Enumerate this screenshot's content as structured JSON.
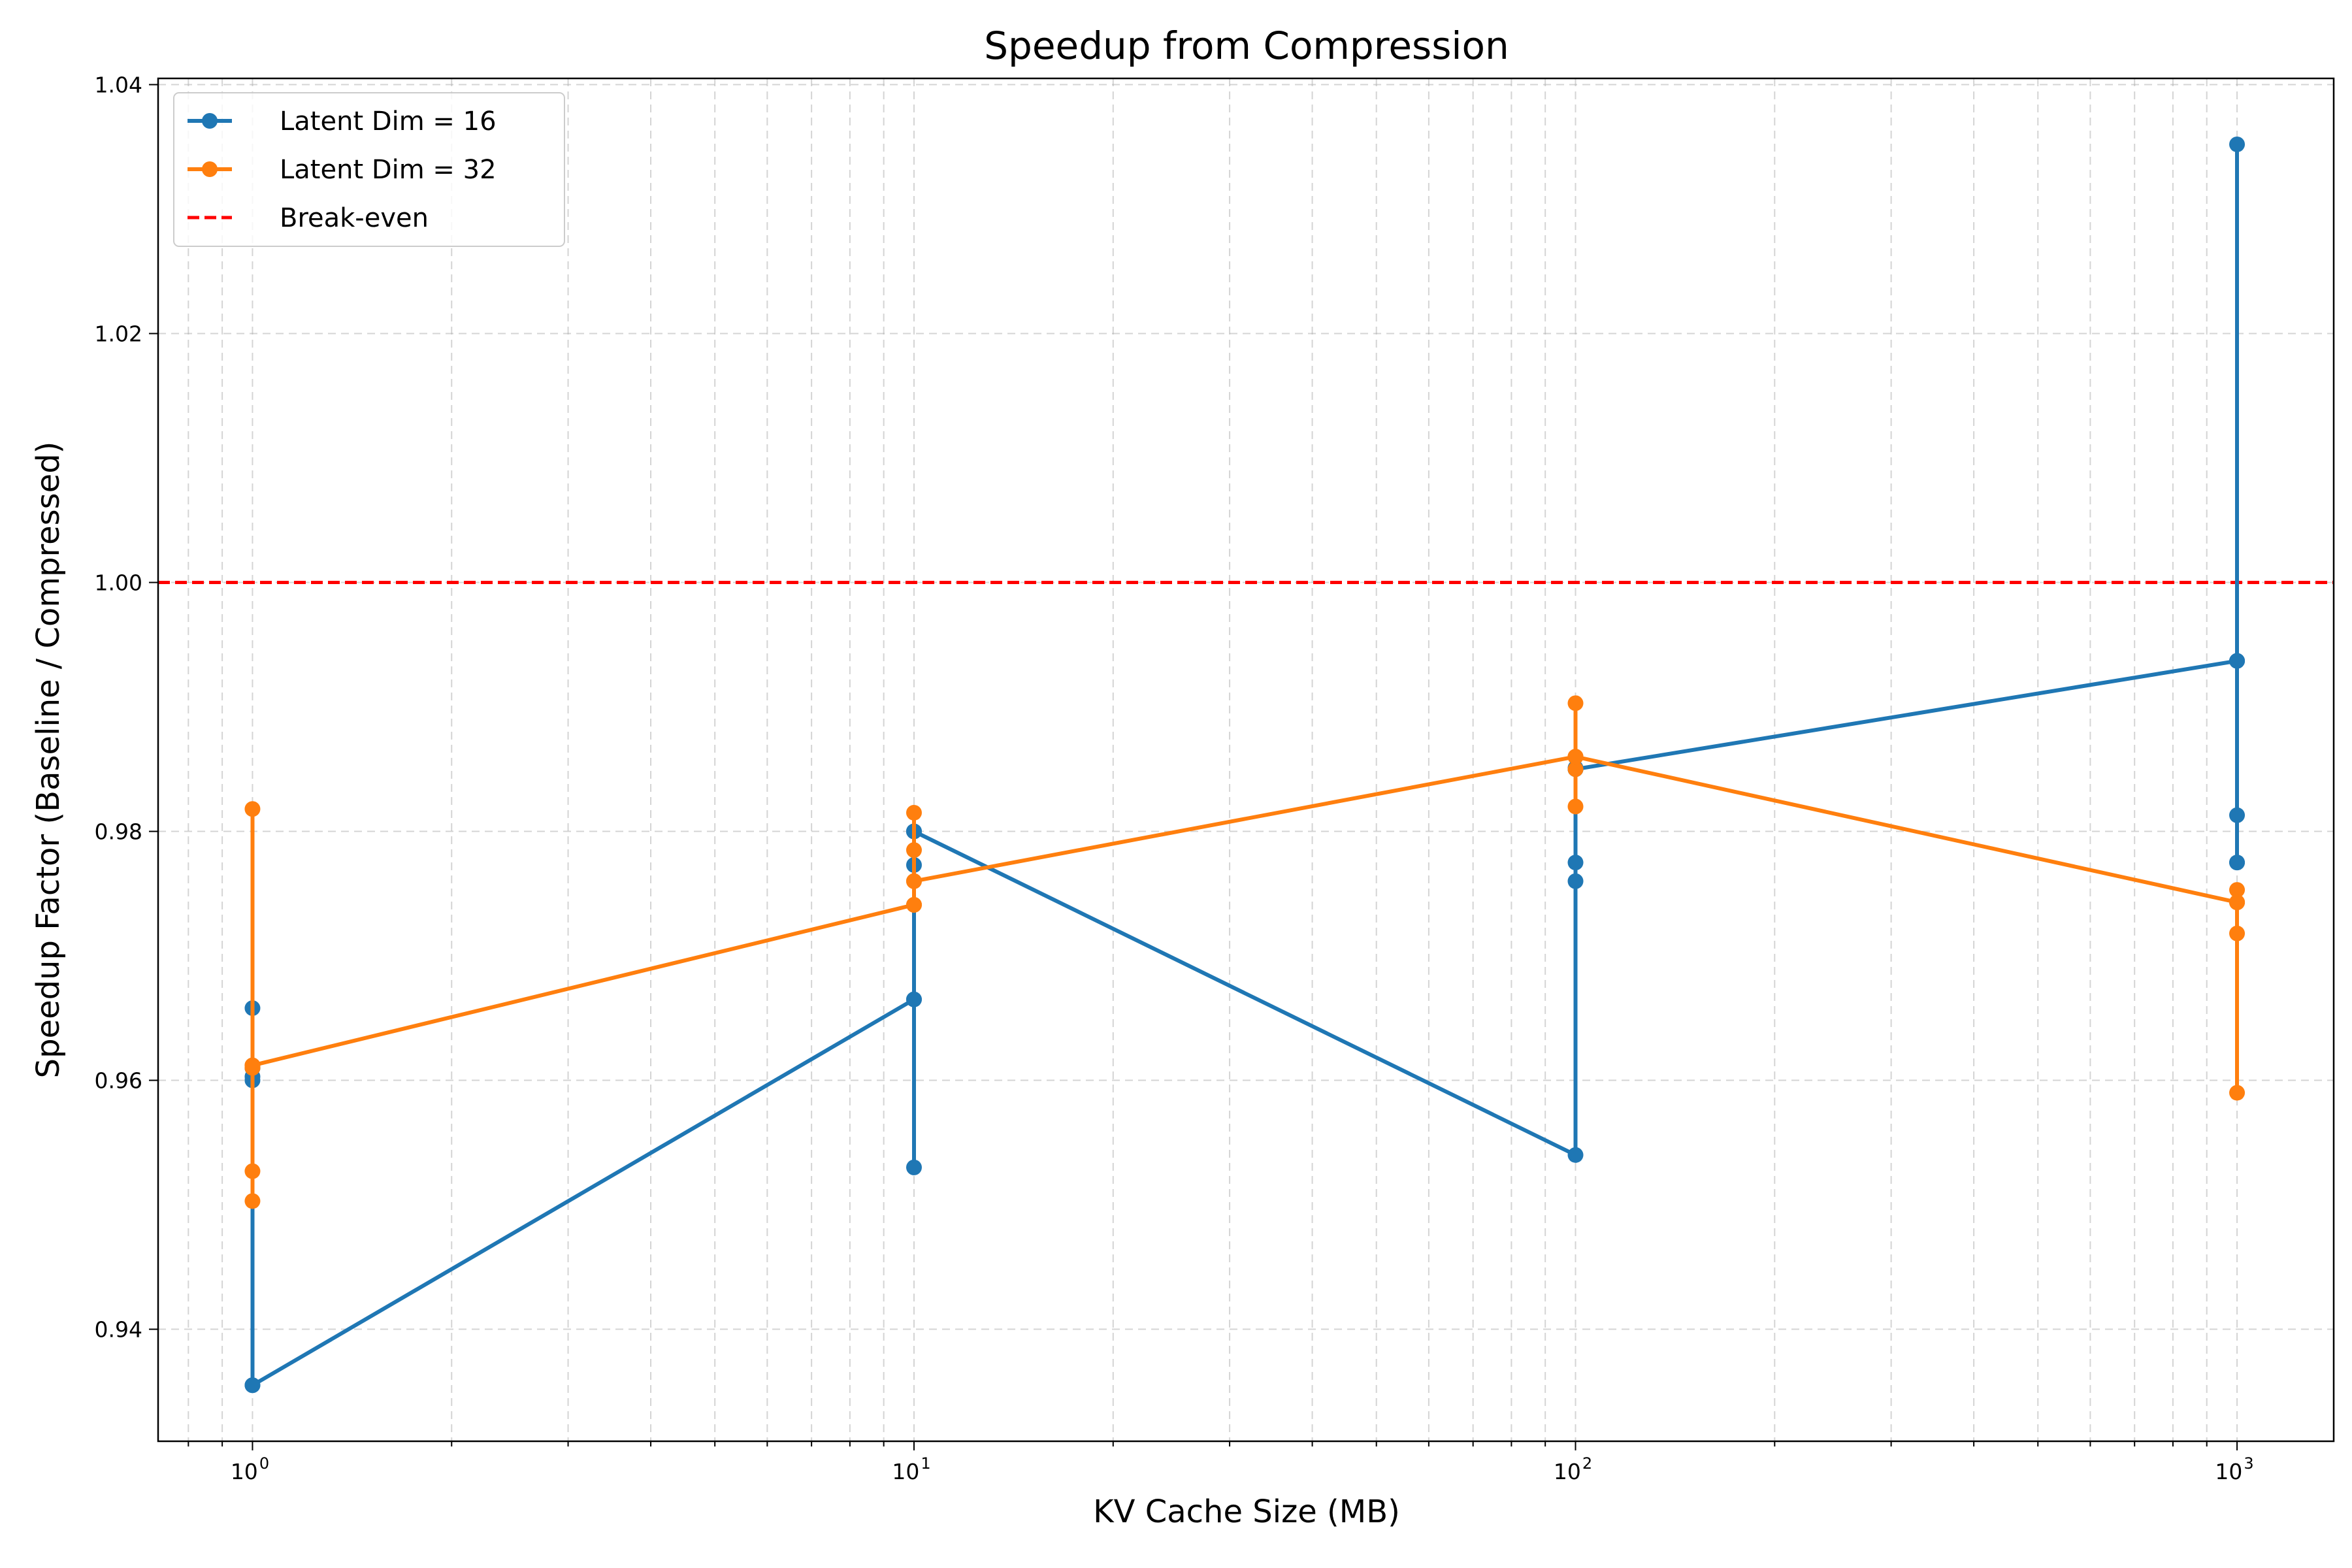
{
  "chart_data": {
    "type": "line",
    "title": "Speedup from Compression",
    "xlabel": "KV Cache Size (MB)",
    "ylabel": "Speedup Factor (Baseline / Compressed)",
    "xscale": "log",
    "xlim": [
      0.72,
      1400
    ],
    "ylim": [
      0.931,
      1.0405
    ],
    "grid": true,
    "legend_position": "top-left",
    "x_ticks": [
      {
        "base": "10",
        "exp": "0",
        "value": 1
      },
      {
        "base": "10",
        "exp": "1",
        "value": 10
      },
      {
        "base": "10",
        "exp": "2",
        "value": 100
      },
      {
        "base": "10",
        "exp": "3",
        "value": 1000
      }
    ],
    "y_ticks": [
      "0.94",
      "0.96",
      "0.98",
      "1.00",
      "1.02",
      "1.04"
    ],
    "series": [
      {
        "name": "Latent Dim = 16",
        "color": "#1f77b4",
        "x": [
          1,
          1,
          1,
          1,
          1,
          1,
          1,
          10,
          10,
          10,
          10,
          10,
          10,
          10,
          100,
          100,
          100,
          100,
          100,
          100,
          100,
          1000,
          1000,
          1000,
          1000,
          1000,
          1000,
          1000
        ],
        "y": [
          0.9355,
          0.96,
          0.961,
          0.9658,
          0.961,
          0.9603,
          0.9355,
          0.9665,
          0.953,
          0.98,
          0.9773,
          0.98,
          0.9665,
          0.98,
          0.954,
          0.976,
          0.9775,
          0.985,
          0.985,
          0.9851,
          0.985,
          0.9937,
          1.0352,
          0.9775,
          0.9813,
          0.9775,
          0.9937,
          0.9937
        ]
      },
      {
        "name": "Latent Dim = 32",
        "color": "#ff7f0e",
        "x": [
          1,
          1,
          1,
          1,
          1,
          1,
          1,
          10,
          10,
          10,
          10,
          10,
          10,
          10,
          100,
          100,
          100,
          100,
          100,
          100,
          100,
          1000,
          1000,
          1000,
          1000,
          1000,
          1000,
          1000
        ],
        "y": [
          0.9612,
          0.9503,
          0.9527,
          0.9818,
          0.9612,
          0.961,
          0.9612,
          0.9741,
          0.9815,
          0.9785,
          0.976,
          0.9741,
          0.9741,
          0.976,
          0.986,
          0.9903,
          0.982,
          0.985,
          0.986,
          0.986,
          0.986,
          0.9743,
          0.9753,
          0.959,
          0.9718,
          0.9743,
          0.9743,
          0.9743
        ]
      }
    ],
    "reference_line": {
      "name": "Break-even",
      "y": 1.0,
      "color": "#ff0000",
      "style": "dashed"
    }
  }
}
